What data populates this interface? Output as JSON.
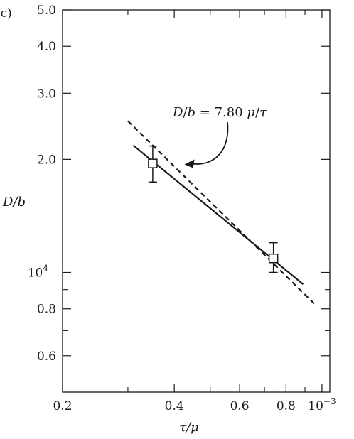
{
  "panel_label": "(c)",
  "chart_data": {
    "type": "scatter",
    "title": "",
    "xlabel": "τ/μ",
    "ylabel": "D/b",
    "x_scale": "log",
    "y_scale": "log",
    "xlim": [
      0.0002,
      0.00105
    ],
    "ylim": [
      4800,
      50000
    ],
    "x_ticks": [
      {
        "value": 0.0002,
        "label": "0.2"
      },
      {
        "value": 0.0004,
        "label": "0.4"
      },
      {
        "value": 0.0006,
        "label": "0.6"
      },
      {
        "value": 0.0008,
        "label": "0.8"
      },
      {
        "value": 0.001,
        "label": "10",
        "exponent": "−3"
      }
    ],
    "x_minor_ticks": [
      0.0003,
      0.0005,
      0.0007,
      0.0009
    ],
    "y_ticks": [
      {
        "value": 6000,
        "label": "0.6"
      },
      {
        "value": 8000,
        "label": "0.8"
      },
      {
        "value": 10000,
        "label": "10",
        "exponent": "4"
      },
      {
        "value": 20000,
        "label": "2.0"
      },
      {
        "value": 30000,
        "label": "3.0"
      },
      {
        "value": 40000,
        "label": "4.0"
      },
      {
        "value": 50000,
        "label": "5.0"
      }
    ],
    "y_minor_ticks": [
      7000,
      9000
    ],
    "grid": false,
    "series": [
      {
        "kind": "points",
        "marker": "open-square",
        "points": [
          {
            "x": 0.00035,
            "y": 19500,
            "y_low": 17400,
            "y_high": 21700
          },
          {
            "x": 0.00074,
            "y": 10900,
            "y_low": 10000,
            "y_high": 12000
          }
        ]
      },
      {
        "kind": "solid-line",
        "points": [
          {
            "x": 0.00031,
            "y": 21800
          },
          {
            "x": 0.00089,
            "y": 9300
          }
        ]
      },
      {
        "kind": "dashed-line",
        "label": "D/b = 7.80 μ/τ",
        "points": [
          {
            "x": 0.0003,
            "y": 25300
          },
          {
            "x": 0.00096,
            "y": 8200
          }
        ]
      }
    ],
    "annotation": {
      "text_parts": [
        "D",
        "/",
        "b",
        " = 7.80 ",
        "μ",
        "/",
        "τ"
      ],
      "arrow_to": {
        "x": 0.00043,
        "y": 19300
      }
    }
  }
}
